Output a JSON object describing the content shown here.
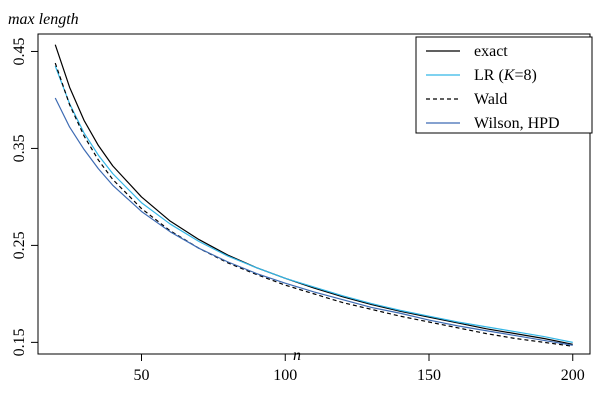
{
  "chart_data": {
    "type": "line",
    "title": "",
    "ylabel": "max length",
    "xlabel": "n",
    "xlim": [
      14,
      206
    ],
    "ylim": [
      0.138,
      0.468
    ],
    "x_ticks": [
      50,
      100,
      150,
      200
    ],
    "y_ticks": [
      0.15,
      0.25,
      0.35,
      0.45
    ],
    "x_tick_labels": [
      "50",
      "100",
      "150",
      "200"
    ],
    "y_tick_labels": [
      "0.15",
      "0.25",
      "0.35",
      "0.45"
    ],
    "legend_position": "top-right",
    "legend_labels": [
      "exact",
      "LR (",
      "K",
      "=8)",
      "Wald",
      "Wilson, HPD"
    ],
    "grid": false,
    "x": [
      20,
      25,
      30,
      35,
      40,
      50,
      60,
      70,
      80,
      90,
      100,
      110,
      120,
      130,
      140,
      150,
      160,
      170,
      180,
      190,
      200
    ],
    "series": [
      {
        "name": "exact",
        "color": "#000000",
        "dash": "solid",
        "values": [
          0.457,
          0.413,
          0.379,
          0.353,
          0.332,
          0.3,
          0.275,
          0.256,
          0.24,
          0.227,
          0.216,
          0.206,
          0.197,
          0.189,
          0.182,
          0.176,
          0.17,
          0.164,
          0.159,
          0.154,
          0.148
        ]
      },
      {
        "name": "LR (K=8)",
        "color": "#33b6e6",
        "dash": "solid",
        "values": [
          0.435,
          0.396,
          0.366,
          0.343,
          0.324,
          0.294,
          0.272,
          0.254,
          0.239,
          0.227,
          0.216,
          0.207,
          0.198,
          0.19,
          0.183,
          0.177,
          0.171,
          0.166,
          0.161,
          0.156,
          0.15
        ]
      },
      {
        "name": "Wald",
        "color": "#000000",
        "dash": "dashed",
        "values": [
          0.438,
          0.395,
          0.363,
          0.338,
          0.318,
          0.288,
          0.265,
          0.247,
          0.232,
          0.22,
          0.209,
          0.2,
          0.191,
          0.184,
          0.177,
          0.171,
          0.165,
          0.159,
          0.154,
          0.15,
          0.146
        ]
      },
      {
        "name": "Wilson, HPD",
        "color": "#3d6bb3",
        "dash": "solid",
        "values": [
          0.402,
          0.372,
          0.349,
          0.329,
          0.312,
          0.285,
          0.264,
          0.247,
          0.233,
          0.221,
          0.211,
          0.202,
          0.194,
          0.186,
          0.18,
          0.173,
          0.167,
          0.162,
          0.157,
          0.152,
          0.147
        ]
      }
    ]
  }
}
